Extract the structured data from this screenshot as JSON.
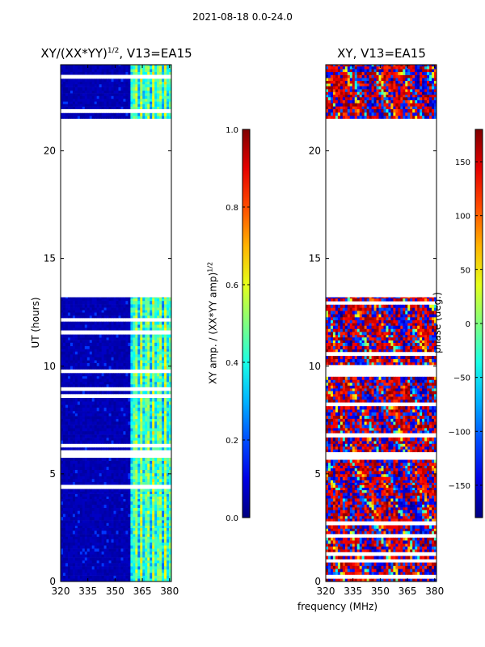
{
  "chart_data": [
    {
      "type": "heatmap",
      "title": "XY/(XX*YY)^1/2, V13=EA15",
      "title_main": "XY/(XX*YY)",
      "title_exp": "1/2",
      "title_rest": ", V13=EA15",
      "xlabel": "",
      "ylabel": "UT (hours)",
      "xlim": [
        320,
        381
      ],
      "ylim": [
        0,
        24
      ],
      "xticks": [
        "320",
        "335",
        "350",
        "365",
        "380"
      ],
      "xtick_values": [
        320,
        335,
        350,
        365,
        380
      ],
      "yticks": [
        "0",
        "5",
        "10",
        "15",
        "20"
      ],
      "ytick_values": [
        0,
        5,
        10,
        15,
        20
      ],
      "colorbar": {
        "label": "XY amp. / (XX*YY amp)^1/2",
        "label_main": "XY amp. / (XX*YY amp)",
        "label_exp": "1/2",
        "range": [
          0.0,
          1.0
        ],
        "ticks": [
          "0.0",
          "0.2",
          "0.4",
          "0.6",
          "0.8",
          "1.0"
        ],
        "tick_values": [
          0.0,
          0.2,
          0.4,
          0.6,
          0.8,
          1.0
        ]
      },
      "data_hours": [
        [
          0,
          13.2
        ],
        [
          21.5,
          24
        ]
      ],
      "blank_hours": [
        [
          13.2,
          21.5
        ]
      ],
      "note": "mostly near 0 below ~359 MHz; bright vertical channel stripes (0.3-0.6) between ~359 and ~381 MHz"
    },
    {
      "type": "heatmap",
      "title": "XY, V13=EA15",
      "xlabel": "frequency (MHz)",
      "ylabel": "",
      "xlim": [
        320,
        381
      ],
      "ylim": [
        0,
        24
      ],
      "xticks": [
        "320",
        "335",
        "350",
        "365",
        "380"
      ],
      "xtick_values": [
        320,
        335,
        350,
        365,
        380
      ],
      "yticks": [
        "0",
        "5",
        "10",
        "15",
        "20"
      ],
      "ytick_values": [
        0,
        5,
        10,
        15,
        20
      ],
      "colorbar": {
        "label": "phase (deg.)",
        "range": [
          -180,
          180
        ],
        "ticks": [
          "−150",
          "−100",
          "−50",
          "0",
          "50",
          "100",
          "150"
        ],
        "tick_values": [
          -150,
          -100,
          -50,
          0,
          50,
          100,
          150
        ]
      },
      "data_hours": [
        [
          0,
          13.2
        ],
        [
          21.5,
          24
        ]
      ],
      "blank_hours": [
        [
          13.2,
          21.5
        ]
      ],
      "note": "noisy phase, mostly red/orange (+120 to +180) and blue (-180 to -120) with wrapping bands"
    }
  ],
  "suptitle": "2021-08-18 0.0-24.0",
  "colormap": "jet"
}
